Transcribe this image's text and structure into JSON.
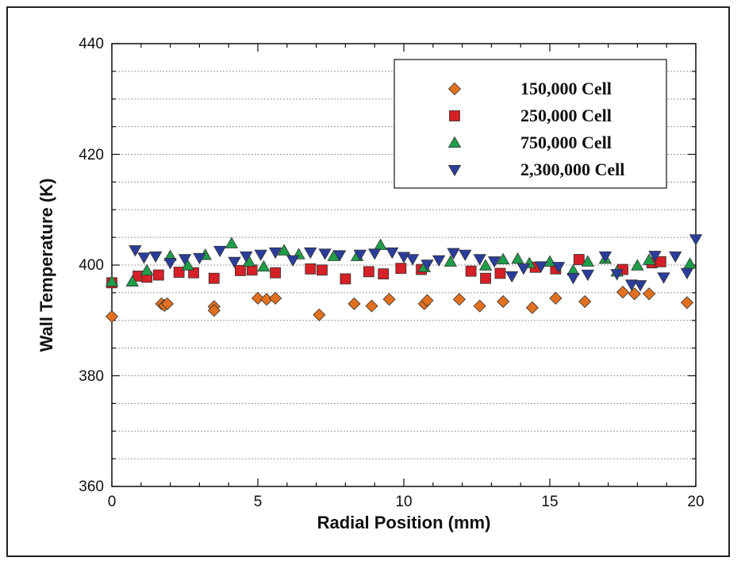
{
  "chart_data": {
    "type": "scatter",
    "title": "",
    "xlabel": "Radial Position (mm)",
    "ylabel": "Wall Temperature (K)",
    "xlim": [
      0,
      20
    ],
    "ylim": [
      360,
      440
    ],
    "xticks": [
      "0",
      "5",
      "10",
      "15",
      "20"
    ],
    "yticks": [
      "360",
      "380",
      "400",
      "420",
      "440"
    ],
    "grid": "horizontal dashed",
    "legend_position": "top-right",
    "series": [
      {
        "name": "150,000 Cell",
        "marker": "diamond",
        "color": "#E2701E",
        "points": [
          [
            0,
            390.7
          ],
          [
            1.7,
            393.0
          ],
          [
            1.8,
            392.7
          ],
          [
            1.9,
            393.0
          ],
          [
            3.5,
            392.5
          ],
          [
            3.5,
            391.8
          ],
          [
            5.0,
            394.0
          ],
          [
            5.3,
            393.8
          ],
          [
            5.6,
            394.0
          ],
          [
            7.1,
            391.0
          ],
          [
            8.3,
            393.0
          ],
          [
            8.9,
            392.6
          ],
          [
            9.5,
            393.8
          ],
          [
            10.7,
            393.0
          ],
          [
            10.8,
            393.6
          ],
          [
            11.9,
            393.8
          ],
          [
            12.6,
            392.6
          ],
          [
            13.4,
            393.4
          ],
          [
            14.4,
            392.3
          ],
          [
            15.2,
            394.0
          ],
          [
            16.2,
            393.4
          ],
          [
            17.5,
            395.1
          ],
          [
            17.9,
            394.8
          ],
          [
            18.4,
            394.8
          ],
          [
            19.7,
            393.2
          ]
        ]
      },
      {
        "name": "250,000 Cell",
        "marker": "square",
        "color": "#D42026",
        "points": [
          [
            0,
            396.8
          ],
          [
            0.9,
            398.0
          ],
          [
            1.2,
            397.8
          ],
          [
            1.6,
            398.2
          ],
          [
            2.3,
            398.7
          ],
          [
            2.8,
            398.6
          ],
          [
            3.5,
            397.6
          ],
          [
            4.4,
            399.0
          ],
          [
            4.8,
            399.1
          ],
          [
            5.6,
            398.6
          ],
          [
            6.8,
            399.3
          ],
          [
            7.2,
            399.1
          ],
          [
            8.0,
            397.5
          ],
          [
            8.8,
            398.8
          ],
          [
            9.3,
            398.4
          ],
          [
            9.9,
            399.4
          ],
          [
            10.6,
            399.2
          ],
          [
            12.3,
            398.9
          ],
          [
            12.8,
            397.6
          ],
          [
            13.3,
            398.5
          ],
          [
            14.5,
            399.6
          ],
          [
            15.2,
            399.3
          ],
          [
            16.0,
            401.0
          ],
          [
            17.5,
            399.2
          ],
          [
            18.5,
            400.4
          ],
          [
            18.8,
            400.6
          ]
        ]
      },
      {
        "name": "750,000 Cell",
        "marker": "triangle-up",
        "color": "#1F9E4A",
        "points": [
          [
            0,
            397.0
          ],
          [
            0.7,
            397.0
          ],
          [
            1.2,
            399.0
          ],
          [
            2.0,
            401.6
          ],
          [
            2.6,
            399.9
          ],
          [
            3.2,
            401.8
          ],
          [
            4.1,
            403.9
          ],
          [
            4.7,
            400.6
          ],
          [
            5.2,
            399.7
          ],
          [
            5.9,
            402.6
          ],
          [
            6.4,
            401.9
          ],
          [
            7.6,
            401.6
          ],
          [
            8.4,
            401.6
          ],
          [
            9.2,
            403.6
          ],
          [
            10.7,
            399.6
          ],
          [
            11.6,
            400.6
          ],
          [
            12.8,
            399.9
          ],
          [
            13.4,
            401.0
          ],
          [
            13.9,
            401.1
          ],
          [
            14.3,
            400.3
          ],
          [
            15.0,
            400.6
          ],
          [
            15.8,
            399.0
          ],
          [
            16.3,
            400.6
          ],
          [
            16.9,
            401.1
          ],
          [
            17.3,
            398.8
          ],
          [
            18.0,
            399.9
          ],
          [
            18.4,
            400.9
          ],
          [
            19.8,
            400.2
          ]
        ]
      },
      {
        "name": "2,300,000 Cell",
        "marker": "triangle-down",
        "color": "#2B3D9C",
        "points": [
          [
            0.8,
            402.7
          ],
          [
            1.1,
            401.4
          ],
          [
            1.5,
            401.6
          ],
          [
            2.0,
            400.4
          ],
          [
            2.5,
            401.1
          ],
          [
            3.0,
            401.3
          ],
          [
            3.7,
            402.6
          ],
          [
            4.2,
            400.6
          ],
          [
            4.6,
            401.6
          ],
          [
            5.1,
            401.9
          ],
          [
            5.6,
            402.3
          ],
          [
            6.2,
            400.9
          ],
          [
            6.8,
            402.3
          ],
          [
            7.3,
            402.1
          ],
          [
            7.8,
            401.8
          ],
          [
            8.5,
            401.9
          ],
          [
            9.0,
            402.1
          ],
          [
            9.6,
            402.3
          ],
          [
            10.0,
            401.5
          ],
          [
            10.3,
            401.1
          ],
          [
            10.8,
            400.1
          ],
          [
            11.2,
            400.9
          ],
          [
            11.7,
            402.2
          ],
          [
            12.1,
            401.9
          ],
          [
            12.6,
            401.1
          ],
          [
            13.1,
            400.7
          ],
          [
            13.7,
            398.0
          ],
          [
            14.1,
            399.4
          ],
          [
            14.7,
            399.8
          ],
          [
            15.3,
            399.7
          ],
          [
            15.8,
            397.7
          ],
          [
            16.3,
            398.3
          ],
          [
            16.9,
            401.6
          ],
          [
            17.3,
            398.4
          ],
          [
            17.8,
            396.5
          ],
          [
            18.1,
            396.4
          ],
          [
            18.6,
            401.7
          ],
          [
            18.9,
            397.8
          ],
          [
            19.3,
            401.6
          ],
          [
            19.7,
            398.6
          ],
          [
            20.0,
            404.7
          ]
        ]
      }
    ]
  }
}
